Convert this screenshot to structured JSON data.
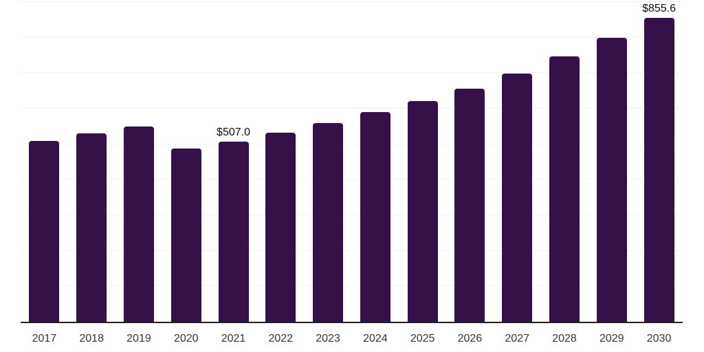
{
  "chart_data": {
    "type": "bar",
    "categories": [
      "2017",
      "2018",
      "2019",
      "2020",
      "2021",
      "2022",
      "2023",
      "2024",
      "2025",
      "2026",
      "2027",
      "2028",
      "2029",
      "2030"
    ],
    "values": [
      509,
      531,
      549,
      487,
      507.0,
      532,
      559,
      590,
      621,
      657,
      699,
      748,
      800,
      855.6
    ],
    "data_labels": [
      "",
      "",
      "",
      "",
      "$507.0",
      "",
      "",
      "",
      "",
      "",
      "",
      "",
      "",
      "$855.6"
    ],
    "title": "",
    "xlabel": "",
    "ylabel": "",
    "ylim": [
      0,
      900
    ],
    "ytick_interval": 100,
    "yaxis_tick_labels_visible": false,
    "grid": "horizontal",
    "legend": "none",
    "currency_prefix": "$",
    "colors": {
      "bar": "#35114a",
      "gridline": "#f2f2f2",
      "axis_line": "#1f1f1f",
      "tick_label": "#333333",
      "value_label": "#0d0d0d",
      "background": "#ffffff"
    }
  }
}
